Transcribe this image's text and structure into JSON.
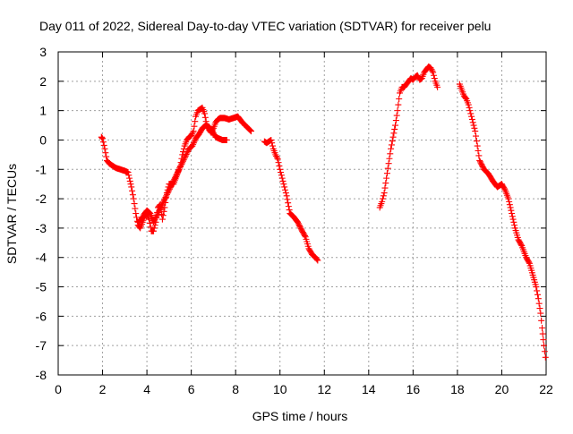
{
  "chart_data": {
    "type": "scatter",
    "title": "Day 011 of 2022, Sidereal Day-to-day VTEC variation (SDTVAR) for receiver pelu",
    "xlabel": "GPS time / hours",
    "ylabel": "SDTVAR / TECUs",
    "xlim": [
      0,
      22
    ],
    "ylim": [
      -8,
      3
    ],
    "xticks": [
      0,
      2,
      4,
      6,
      8,
      10,
      12,
      14,
      16,
      18,
      20,
      22
    ],
    "yticks": [
      -8,
      -7,
      -6,
      -5,
      -4,
      -3,
      -2,
      -1,
      0,
      1,
      2,
      3
    ],
    "grid": true,
    "legend": "none",
    "marker": "plus",
    "color": "#ff0000",
    "series": [
      {
        "name": "segment 1",
        "x": [
          1.95,
          2.0,
          2.1,
          2.2,
          2.3,
          2.4,
          2.6,
          2.8,
          3.0,
          3.15,
          3.3,
          3.4,
          3.5,
          3.6,
          3.7,
          3.8,
          3.9,
          4.0,
          4.1,
          4.2,
          4.3,
          4.4,
          4.5,
          4.6,
          4.7,
          4.8,
          4.9,
          5.0,
          5.1,
          5.2,
          5.35,
          5.5,
          5.6,
          5.7,
          5.8,
          5.9,
          6.0,
          6.1,
          6.2,
          6.3,
          6.4,
          6.5,
          6.6,
          6.7,
          6.8,
          6.9,
          7.0,
          7.1,
          7.2,
          7.3,
          7.5,
          7.7,
          7.9,
          8.1,
          8.3,
          8.5,
          8.7
        ],
        "y": [
          0.1,
          0.05,
          -0.3,
          -0.7,
          -0.8,
          -0.85,
          -0.95,
          -1.0,
          -1.05,
          -1.1,
          -1.6,
          -2.0,
          -2.5,
          -2.9,
          -3.0,
          -2.8,
          -2.6,
          -2.5,
          -2.7,
          -3.1,
          -3.1,
          -2.8,
          -2.3,
          -2.2,
          -2.7,
          -2.3,
          -1.8,
          -1.5,
          -1.5,
          -1.5,
          -1.2,
          -0.9,
          -0.5,
          -0.2,
          0.0,
          0.1,
          0.15,
          0.3,
          0.8,
          1.0,
          1.05,
          1.1,
          0.9,
          0.5,
          0.35,
          0.25,
          0.4,
          0.6,
          0.7,
          0.75,
          0.75,
          0.7,
          0.75,
          0.8,
          0.6,
          0.45,
          0.3
        ]
      },
      {
        "name": "segment 1 loop",
        "x": [
          3.6,
          3.75,
          3.9,
          4.0,
          4.15,
          4.3,
          5.9,
          6.05,
          6.2,
          6.35,
          6.5,
          6.65,
          6.8,
          6.95,
          7.1,
          7.25,
          7.4,
          7.5,
          7.6
        ],
        "y": [
          -2.8,
          -2.7,
          -2.5,
          -2.4,
          -2.5,
          -2.8,
          -0.3,
          -0.2,
          0.05,
          0.2,
          0.4,
          0.5,
          0.45,
          0.3,
          0.1,
          0.05,
          0.0,
          0.0,
          0.0
        ]
      },
      {
        "name": "segment 2",
        "x": [
          9.3,
          9.4,
          9.5,
          9.6,
          9.7,
          9.8,
          9.9,
          10.0,
          10.1,
          10.2,
          10.3,
          10.45,
          10.6,
          10.8,
          11.0,
          11.15,
          11.3,
          11.45,
          11.6,
          11.7
        ],
        "y": [
          -0.05,
          -0.1,
          -0.05,
          0.0,
          -0.3,
          -0.5,
          -0.65,
          -1.0,
          -1.3,
          -1.6,
          -1.9,
          -2.5,
          -2.6,
          -2.8,
          -3.1,
          -3.3,
          -3.7,
          -3.9,
          -4.0,
          -4.1
        ]
      },
      {
        "name": "segment 3",
        "x": [
          14.5,
          14.6,
          14.7,
          14.8,
          14.9,
          15.0,
          15.1,
          15.2,
          15.3,
          15.4,
          15.5,
          15.6,
          15.7,
          15.8,
          15.9,
          16.0,
          16.1,
          16.2,
          16.3,
          16.4,
          16.5,
          16.6,
          16.7,
          16.8,
          16.9,
          17.0,
          17.1
        ],
        "y": [
          -2.3,
          -2.1,
          -1.8,
          -1.3,
          -0.8,
          -0.3,
          0.1,
          0.5,
          1.0,
          1.6,
          1.8,
          1.8,
          1.9,
          2.0,
          2.1,
          2.05,
          2.15,
          2.2,
          2.05,
          2.1,
          2.3,
          2.4,
          2.5,
          2.45,
          2.3,
          2.0,
          1.8
        ]
      },
      {
        "name": "segment 4",
        "x": [
          18.1,
          18.2,
          18.3,
          18.4,
          18.5,
          18.6,
          18.7,
          18.8,
          18.9,
          19.0,
          19.2,
          19.4,
          19.6,
          19.8,
          20.0,
          20.15,
          20.3,
          20.45,
          20.6,
          20.75,
          20.9,
          21.0,
          21.1,
          21.25,
          21.4,
          21.55,
          21.65,
          21.75,
          21.82,
          21.9,
          21.97
        ],
        "y": [
          1.9,
          1.7,
          1.5,
          1.4,
          1.2,
          0.9,
          0.6,
          0.3,
          -0.2,
          -0.7,
          -1.0,
          -1.15,
          -1.4,
          -1.6,
          -1.5,
          -1.7,
          -2.0,
          -2.5,
          -3.0,
          -3.4,
          -3.6,
          -3.8,
          -4.0,
          -4.2,
          -4.6,
          -5.0,
          -5.4,
          -5.9,
          -6.4,
          -7.0,
          -7.4
        ]
      }
    ]
  }
}
